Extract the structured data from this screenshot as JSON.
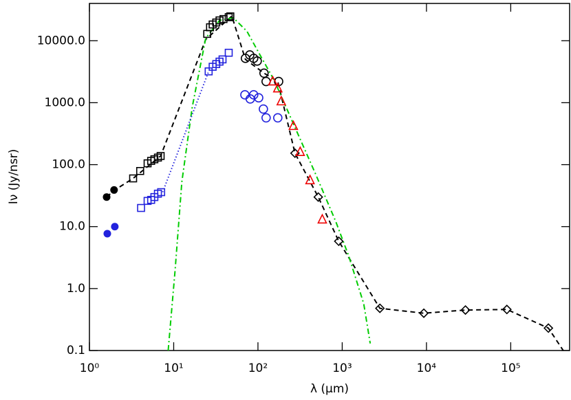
{
  "chart_data": {
    "type": "scatter",
    "x_label": "λ (μm)",
    "y_label": "Iν (Jy/nsr)",
    "xscale": "log",
    "yscale": "log",
    "xlim": [
      1,
      500000
    ],
    "ylim": [
      0.1,
      40000
    ],
    "xticks": [
      {
        "value": 1,
        "label": "10⁰"
      },
      {
        "value": 10,
        "label": "10¹"
      },
      {
        "value": 100,
        "label": "10²"
      },
      {
        "value": 1000,
        "label": "10³"
      },
      {
        "value": 10000,
        "label": "10⁴"
      },
      {
        "value": 100000,
        "label": "10⁵"
      }
    ],
    "yticks": [
      {
        "value": 0.1,
        "label": "0.1"
      },
      {
        "value": 1,
        "label": "1.0"
      },
      {
        "value": 10,
        "label": "10.0"
      },
      {
        "value": 100,
        "label": "100.0"
      },
      {
        "value": 1000,
        "label": "1000.0"
      },
      {
        "value": 10000,
        "label": "10000.0"
      }
    ],
    "series": [
      {
        "color": "#000000",
        "line": "dashed",
        "marker": "none",
        "x": [
          1.6,
          2.0,
          3.3,
          7.0,
          24,
          49,
          71,
          118,
          172,
          275,
          520,
          910,
          2800,
          9300,
          29000,
          90000,
          280000,
          420000
        ],
        "values": [
          30,
          39,
          60,
          138,
          10500,
          25000,
          5000,
          3000,
          2200,
          153,
          30,
          5.8,
          0.48,
          0.4,
          0.45,
          0.46,
          0.23,
          0.1
        ]
      },
      {
        "color": "#00cc00",
        "line": "dash-dot",
        "marker": "none",
        "x": [
          8.6,
          10.4,
          12.5,
          16.6,
          24,
          35,
          51,
          74,
          108,
          156,
          275,
          480,
          840,
          1200,
          1800,
          2150
        ],
        "values": [
          0.1,
          2.0,
          53,
          850,
          11000,
          21300,
          23500,
          14200,
          5600,
          2300,
          400,
          72,
          12,
          3.3,
          0.57,
          0.13
        ]
      },
      {
        "color": "#2222dd",
        "line": "dotted",
        "marker": "none",
        "x": [
          7.4,
          26
        ],
        "values": [
          36,
          3200
        ]
      },
      {
        "color": "#000000",
        "line": "none",
        "marker": "circle-filled",
        "x": [
          1.6,
          1.96
        ],
        "values": [
          30,
          39
        ]
      },
      {
        "color": "#000000",
        "line": "none",
        "marker": "square-open",
        "x": [
          3.3,
          4.0,
          4.9,
          5.4,
          5.9,
          6.5,
          7.0,
          25,
          27,
          29,
          32,
          35,
          39,
          45,
          47
        ],
        "values": [
          60,
          79,
          105,
          115,
          122,
          130,
          138,
          12900,
          16500,
          18300,
          19700,
          21300,
          22400,
          24000,
          24700
        ]
      },
      {
        "color": "#000000",
        "line": "none",
        "marker": "circle-open",
        "x": [
          71,
          80,
          89,
          98,
          118,
          125,
          176
        ],
        "values": [
          5200,
          5900,
          5200,
          4700,
          3000,
          2200,
          2200
        ]
      },
      {
        "color": "#000000",
        "line": "none",
        "marker": "diamond-open",
        "x": [
          275,
          520,
          910,
          2800,
          9300,
          29000,
          90000,
          280000
        ],
        "values": [
          153,
          30,
          5.8,
          0.48,
          0.4,
          0.45,
          0.46,
          0.23
        ]
      },
      {
        "color": "#2222dd",
        "line": "none",
        "marker": "circle-filled",
        "x": [
          1.63,
          2.0
        ],
        "values": [
          7.7,
          10
        ]
      },
      {
        "color": "#2222dd",
        "line": "none",
        "marker": "square-open",
        "x": [
          4.1,
          4.9,
          5.4,
          5.9,
          6.5,
          7.1,
          26,
          29,
          32,
          35,
          38,
          45
        ],
        "values": [
          20,
          26,
          27,
          30,
          34,
          36,
          3200,
          3800,
          4200,
          4600,
          5000,
          6400
        ]
      },
      {
        "color": "#2222dd",
        "line": "none",
        "marker": "circle-open",
        "x": [
          70,
          81,
          89,
          102,
          116,
          125,
          172
        ],
        "values": [
          1340,
          1150,
          1340,
          1200,
          790,
          570,
          570
        ]
      },
      {
        "color": "#ee0000",
        "line": "none",
        "marker": "triangle-open",
        "x": [
          150,
          172,
          189,
          263,
          317,
          415,
          580
        ],
        "values": [
          2200,
          1700,
          1050,
          420,
          160,
          56,
          13
        ]
      }
    ]
  }
}
